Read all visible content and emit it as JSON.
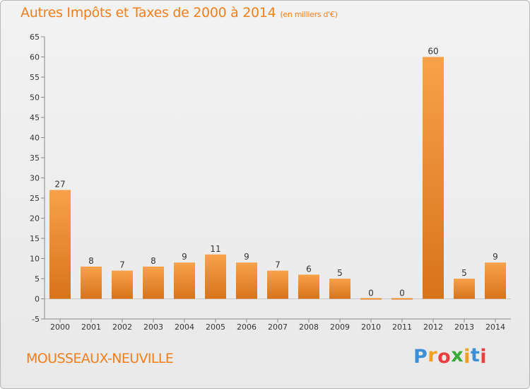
{
  "header": {
    "title": "Autres Impôts et Taxes de 2000 à 2014",
    "unit": "(en milliers d'€)"
  },
  "footer": {
    "commune": "MOUSSEAUX-NEUVILLE",
    "logo_letters": [
      "P",
      "r",
      "o",
      "x",
      "i",
      "t",
      "i"
    ],
    "logo_colors": [
      "#3a8fd8",
      "#f0a020",
      "#e84040",
      "#3aaa3a",
      "#f0a020",
      "#3a8fd8",
      "#e84040"
    ]
  },
  "chart_data": {
    "type": "bar",
    "title": "Autres Impôts et Taxes de 2000 à 2014",
    "subtitle": "(en milliers d'€)",
    "categories": [
      "2000",
      "2001",
      "2002",
      "2003",
      "2004",
      "2005",
      "2006",
      "2007",
      "2008",
      "2009",
      "2010",
      "2011",
      "2012",
      "2013",
      "2014"
    ],
    "values": [
      27,
      8,
      7,
      8,
      9,
      11,
      9,
      7,
      6,
      5,
      0,
      0,
      60,
      5,
      9
    ],
    "data_labels": [
      "27",
      "8",
      "7",
      "8",
      "9",
      "11",
      "9",
      "7",
      "6",
      "5",
      "0",
      "0",
      "60",
      "5",
      "9"
    ],
    "ylim": [
      -5,
      65
    ],
    "yticks": [
      -5,
      0,
      5,
      10,
      15,
      20,
      25,
      30,
      35,
      40,
      45,
      50,
      55,
      60,
      65
    ],
    "ytick_labels": [
      "-5",
      "0",
      "5",
      "10",
      "15",
      "20",
      "25",
      "30",
      "35",
      "40",
      "45",
      "50",
      "55",
      "60",
      "65"
    ],
    "grid": false,
    "bar_color_top": "#f7a24a",
    "bar_color_bottom": "#d8731a"
  }
}
